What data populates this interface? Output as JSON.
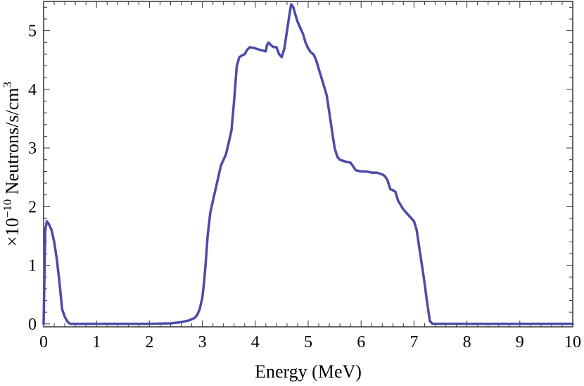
{
  "chart_data": {
    "type": "line",
    "xlabel": "Energy (MeV)",
    "ylabel_prefix": "×10",
    "ylabel_exp": "−10",
    "ylabel_main": " Neutrons/s/cm",
    "ylabel_sup": "3",
    "xlim": [
      0,
      10
    ],
    "ylim": [
      -0.05,
      5.5
    ],
    "x_ticks": [
      "0",
      "1",
      "2",
      "3",
      "4",
      "5",
      "6",
      "7",
      "8",
      "9",
      "10"
    ],
    "y_ticks": [
      "0",
      "1",
      "2",
      "3",
      "4",
      "5"
    ],
    "grid": false,
    "line_color": "#4b4ba8",
    "series": [
      {
        "x": [
          0,
          0.03,
          0.06,
          0.1,
          0.15,
          0.2,
          0.25,
          0.3,
          0.35,
          0.4,
          0.45,
          0.5,
          0.55,
          0.6,
          1.0,
          1.5,
          2.0,
          2.4,
          2.6,
          2.75,
          2.85,
          2.9,
          2.95,
          3.0,
          3.03,
          3.06,
          3.1,
          3.15,
          3.2,
          3.25,
          3.3,
          3.35,
          3.4,
          3.45,
          3.5,
          3.55,
          3.6,
          3.65,
          3.7,
          3.75,
          3.8,
          3.85,
          3.9,
          3.95,
          4.0,
          4.1,
          4.2,
          4.22,
          4.25,
          4.3,
          4.35,
          4.4,
          4.45,
          4.5,
          4.55,
          4.6,
          4.65,
          4.68,
          4.72,
          4.75,
          4.8,
          4.85,
          4.9,
          4.95,
          5.0,
          5.05,
          5.1,
          5.15,
          5.2,
          5.25,
          5.3,
          5.35,
          5.4,
          5.45,
          5.5,
          5.55,
          5.6,
          5.7,
          5.8,
          5.9,
          6.0,
          6.1,
          6.2,
          6.3,
          6.4,
          6.45,
          6.5,
          6.55,
          6.6,
          6.65,
          6.7,
          6.8,
          6.9,
          7.0,
          7.05,
          7.1,
          7.15,
          7.2,
          7.25,
          7.3,
          7.35,
          8,
          9,
          10
        ],
        "y": [
          0.0,
          1.6,
          1.75,
          1.7,
          1.6,
          1.4,
          1.1,
          0.7,
          0.25,
          0.12,
          0.04,
          0.0,
          0.0,
          0.0,
          0.0,
          0.0,
          0.0,
          0.01,
          0.03,
          0.06,
          0.1,
          0.15,
          0.25,
          0.45,
          0.7,
          1.0,
          1.5,
          1.9,
          2.1,
          2.3,
          2.5,
          2.7,
          2.8,
          2.9,
          3.1,
          3.3,
          3.8,
          4.4,
          4.55,
          4.58,
          4.6,
          4.68,
          4.72,
          4.71,
          4.7,
          4.67,
          4.65,
          4.75,
          4.8,
          4.75,
          4.72,
          4.72,
          4.6,
          4.55,
          4.7,
          5.0,
          5.3,
          5.45,
          5.4,
          5.3,
          5.15,
          5.05,
          4.95,
          4.8,
          4.7,
          4.63,
          4.6,
          4.5,
          4.35,
          4.2,
          4.05,
          3.9,
          3.6,
          3.3,
          3.0,
          2.85,
          2.8,
          2.77,
          2.75,
          2.62,
          2.6,
          2.6,
          2.58,
          2.58,
          2.55,
          2.52,
          2.45,
          2.3,
          2.28,
          2.25,
          2.1,
          1.95,
          1.85,
          1.75,
          1.6,
          1.3,
          1.0,
          0.7,
          0.35,
          0.05,
          0.0,
          0.0,
          0.0,
          0.0
        ]
      }
    ]
  }
}
